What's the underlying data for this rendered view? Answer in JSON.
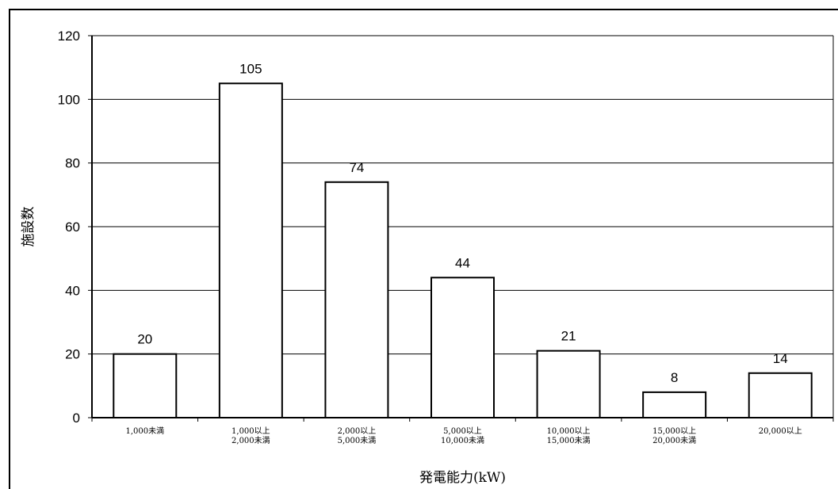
{
  "chart_data": {
    "type": "bar",
    "categories": [
      [
        "1,000未満"
      ],
      [
        "1,000以上",
        "2,000未満"
      ],
      [
        "2,000以上",
        "5,000未満"
      ],
      [
        "5,000以上",
        "10,000未満"
      ],
      [
        "10,000以上",
        "15,000未満"
      ],
      [
        "15,000以上",
        "20,000未満"
      ],
      [
        "20,000以上"
      ]
    ],
    "values": [
      20,
      105,
      74,
      44,
      21,
      8,
      14
    ],
    "data_labels": [
      "20",
      "105",
      "74",
      "44",
      "21",
      "8",
      "14"
    ],
    "yticks": [
      "0",
      "20",
      "40",
      "60",
      "80",
      "100",
      "120"
    ],
    "ylim": [
      0,
      120
    ],
    "xlabel": "発電能力(kW)",
    "ylabel": "施設数",
    "grid": true,
    "bar_fill": "#ffffff",
    "bar_stroke": "#000000",
    "gridline_color": "#000000"
  }
}
